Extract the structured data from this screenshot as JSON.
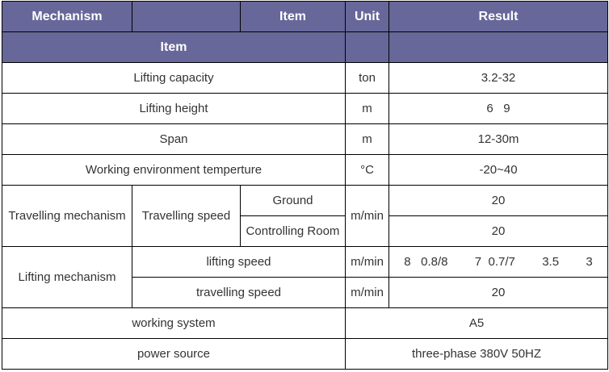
{
  "header": {
    "mechanism": "Mechanism",
    "empty": "",
    "item": "Item",
    "unit": "Unit",
    "result": "Result",
    "item2": "Item"
  },
  "colors": {
    "header_bg": "#67679a",
    "header_text": "#ffffff",
    "border": "#000000"
  },
  "rows": {
    "capacity": {
      "item": "Lifting capacity",
      "unit": "ton",
      "result": "3.2-32"
    },
    "height": {
      "item": "Lifting height",
      "unit": "m",
      "result": "6   9"
    },
    "span": {
      "item": "Span",
      "unit": "m",
      "result": "12-30m"
    },
    "temp": {
      "item": "Working environment temperture",
      "unit": "°C",
      "result": "-20~40"
    },
    "travelling": {
      "mechanism": "Travelling mechanism",
      "item": "Travelling speed",
      "unit": "m/min",
      "sub": [
        {
          "label": "Ground",
          "result": "20"
        },
        {
          "label": "Controlling Room",
          "result": "20"
        }
      ]
    },
    "lifting": {
      "mechanism": "Lifting mechanism",
      "sub": [
        {
          "label": "lifting speed",
          "unit": "m/min",
          "result": "8   0.8/8        7  0.7/7        3.5        3"
        },
        {
          "label": "travelling speed",
          "unit": "m/min",
          "result": "20"
        }
      ]
    },
    "system": {
      "item": "working system",
      "result": "A5"
    },
    "power": {
      "item": "power source",
      "result": "three-phase 380V 50HZ"
    }
  }
}
